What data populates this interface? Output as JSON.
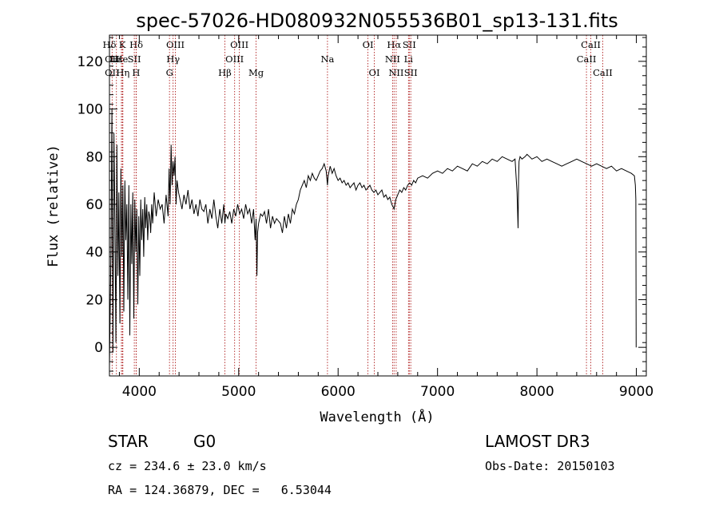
{
  "colors": {
    "spectrum": "#000000",
    "linemark": "#b02020",
    "axis": "#000000"
  },
  "header": {
    "title": "spec-57026-HD080932N055536B01_sp13-131.fits"
  },
  "info": {
    "type": "STAR",
    "subclass": "G0",
    "survey": "LAMOST DR3",
    "cz": "cz = 234.6 ± 23.0 km/s",
    "obsdate": "Obs-Date: 20150103",
    "radec": "RA = 124.36879, DEC =   6.53044"
  },
  "chart_data": {
    "type": "line",
    "title": "spec-57026-HD080932N055536B01_sp13-131.fits",
    "xlabel": "Wavelength (Å)",
    "ylabel": "Flux (relative)",
    "xlim": [
      3700,
      9100
    ],
    "ylim": [
      -12,
      131
    ],
    "xticks": [
      4000,
      5000,
      6000,
      7000,
      8000,
      9000
    ],
    "yticks": [
      0,
      20,
      40,
      60,
      80,
      100,
      120
    ],
    "series": [
      {
        "name": "flux",
        "x": [
          3700,
          3715,
          3725,
          3735,
          3745,
          3755,
          3765,
          3775,
          3785,
          3795,
          3805,
          3815,
          3825,
          3835,
          3845,
          3855,
          3865,
          3875,
          3885,
          3895,
          3905,
          3915,
          3925,
          3935,
          3945,
          3955,
          3965,
          3975,
          3985,
          3995,
          4005,
          4015,
          4025,
          4035,
          4045,
          4055,
          4065,
          4075,
          4085,
          4095,
          4105,
          4115,
          4125,
          4135,
          4150,
          4170,
          4190,
          4210,
          4230,
          4250,
          4270,
          4290,
          4300,
          4310,
          4320,
          4330,
          4340,
          4350,
          4360,
          4370,
          4380,
          4395,
          4410,
          4430,
          4450,
          4470,
          4490,
          4510,
          4530,
          4550,
          4570,
          4590,
          4610,
          4630,
          4650,
          4670,
          4690,
          4710,
          4730,
          4750,
          4770,
          4790,
          4810,
          4830,
          4850,
          4861,
          4870,
          4890,
          4910,
          4930,
          4950,
          4970,
          4990,
          5010,
          5030,
          5050,
          5070,
          5090,
          5110,
          5130,
          5150,
          5165,
          5175,
          5183,
          5190,
          5200,
          5220,
          5240,
          5260,
          5280,
          5300,
          5320,
          5340,
          5360,
          5380,
          5400,
          5420,
          5440,
          5460,
          5480,
          5500,
          5520,
          5540,
          5560,
          5580,
          5600,
          5620,
          5640,
          5660,
          5680,
          5700,
          5720,
          5740,
          5760,
          5780,
          5800,
          5820,
          5840,
          5860,
          5880,
          5893,
          5900,
          5920,
          5940,
          5960,
          5980,
          6000,
          6020,
          6040,
          6060,
          6080,
          6100,
          6120,
          6140,
          6160,
          6180,
          6200,
          6220,
          6240,
          6260,
          6280,
          6300,
          6320,
          6340,
          6360,
          6380,
          6400,
          6420,
          6440,
          6460,
          6480,
          6500,
          6520,
          6540,
          6563,
          6580,
          6600,
          6620,
          6640,
          6660,
          6680,
          6700,
          6720,
          6740,
          6760,
          6780,
          6800,
          6850,
          6900,
          6950,
          7000,
          7050,
          7100,
          7150,
          7200,
          7250,
          7300,
          7350,
          7400,
          7450,
          7500,
          7550,
          7600,
          7650,
          7700,
          7750,
          7780,
          7800,
          7810,
          7815,
          7820,
          7830,
          7850,
          7880,
          7900,
          7950,
          8000,
          8050,
          8100,
          8150,
          8200,
          8250,
          8300,
          8350,
          8400,
          8450,
          8500,
          8550,
          8600,
          8650,
          8700,
          8750,
          8800,
          8850,
          8900,
          8950,
          8980,
          8990,
          8995,
          8998
        ],
        "y": [
          -8,
          40,
          100,
          -2,
          90,
          55,
          2,
          85,
          30,
          65,
          10,
          75,
          38,
          68,
          15,
          70,
          45,
          60,
          20,
          68,
          5,
          60,
          35,
          65,
          12,
          62,
          40,
          58,
          18,
          55,
          30,
          62,
          45,
          58,
          38,
          63,
          50,
          60,
          45,
          57,
          55,
          48,
          60,
          52,
          65,
          55,
          62,
          58,
          60,
          52,
          64,
          55,
          75,
          60,
          85,
          68,
          78,
          72,
          80,
          60,
          70,
          65,
          62,
          58,
          64,
          60,
          66,
          58,
          62,
          56,
          60,
          55,
          62,
          58,
          57,
          60,
          52,
          58,
          54,
          62,
          55,
          50,
          58,
          52,
          60,
          52,
          56,
          54,
          57,
          52,
          58,
          55,
          60,
          56,
          58,
          54,
          60,
          56,
          58,
          52,
          58,
          45,
          54,
          30,
          48,
          52,
          56,
          55,
          57,
          52,
          58,
          50,
          55,
          52,
          54,
          53,
          52,
          48,
          55,
          50,
          56,
          52,
          58,
          56,
          60,
          62,
          66,
          68,
          70,
          67,
          72,
          70,
          73,
          71,
          70,
          72,
          74,
          75,
          77,
          74,
          68,
          72,
          76,
          73,
          75,
          72,
          70,
          71,
          69,
          70,
          68,
          69,
          67,
          68,
          69,
          66,
          68,
          69,
          67,
          68,
          66,
          67,
          68,
          66,
          65,
          66,
          64,
          65,
          66,
          63,
          64,
          62,
          63,
          60,
          58,
          62,
          64,
          66,
          65,
          67,
          66,
          68,
          69,
          68,
          70,
          69,
          71,
          72,
          71,
          73,
          74,
          73,
          75,
          74,
          76,
          75,
          74,
          77,
          76,
          78,
          77,
          79,
          78,
          80,
          79,
          78,
          79,
          65,
          50,
          70,
          78,
          80,
          79,
          80,
          81,
          79,
          80,
          78,
          79,
          78,
          77,
          76,
          77,
          78,
          79,
          78,
          77,
          76,
          77,
          76,
          75,
          76,
          74,
          75,
          74,
          73,
          72,
          68,
          62,
          0
        ]
      }
    ],
    "line_marks": [
      {
        "label": "Hδ",
        "wl": 3700,
        "row": 1
      },
      {
        "label": "Hε",
        "wl": 3770,
        "row": 2
      },
      {
        "label": "K",
        "wl": 3830,
        "row": 1
      },
      {
        "label": "Hδ",
        "wl": 3970,
        "row": 1
      },
      {
        "label": "OII",
        "wl": 3727,
        "row": 2
      },
      {
        "label": "He",
        "wl": 3820,
        "row": 2
      },
      {
        "label": "SII",
        "wl": 3950,
        "row": 2
      },
      {
        "label": "OII",
        "wl": 3727,
        "row": 3
      },
      {
        "label": "Hη",
        "wl": 3835,
        "row": 3
      },
      {
        "label": "H",
        "wl": 3968,
        "row": 3
      },
      {
        "label": "OIII",
        "wl": 4363,
        "row": 1
      },
      {
        "label": "Hγ",
        "wl": 4340,
        "row": 2
      },
      {
        "label": "G",
        "wl": 4304,
        "row": 3
      },
      {
        "label": "OIII",
        "wl": 5007,
        "row": 1
      },
      {
        "label": "OIII",
        "wl": 4959,
        "row": 2
      },
      {
        "label": "Hβ",
        "wl": 4861,
        "row": 3
      },
      {
        "label": "Mg",
        "wl": 5175,
        "row": 3
      },
      {
        "label": "Na",
        "wl": 5893,
        "row": 2
      },
      {
        "label": "OI",
        "wl": 6300,
        "row": 1
      },
      {
        "label": "OI",
        "wl": 6364,
        "row": 3
      },
      {
        "label": "Hα",
        "wl": 6563,
        "row": 1
      },
      {
        "label": "SII",
        "wl": 6716,
        "row": 1
      },
      {
        "label": "NII",
        "wl": 6548,
        "row": 2
      },
      {
        "label": "Li",
        "wl": 6708,
        "row": 2
      },
      {
        "label": "NII",
        "wl": 6584,
        "row": 3
      },
      {
        "label": "SII",
        "wl": 6731,
        "row": 3
      },
      {
        "label": "CaII",
        "wl": 8542,
        "row": 1
      },
      {
        "label": "CaII",
        "wl": 8498,
        "row": 2
      },
      {
        "label": "CaII",
        "wl": 8662,
        "row": 3
      }
    ]
  }
}
